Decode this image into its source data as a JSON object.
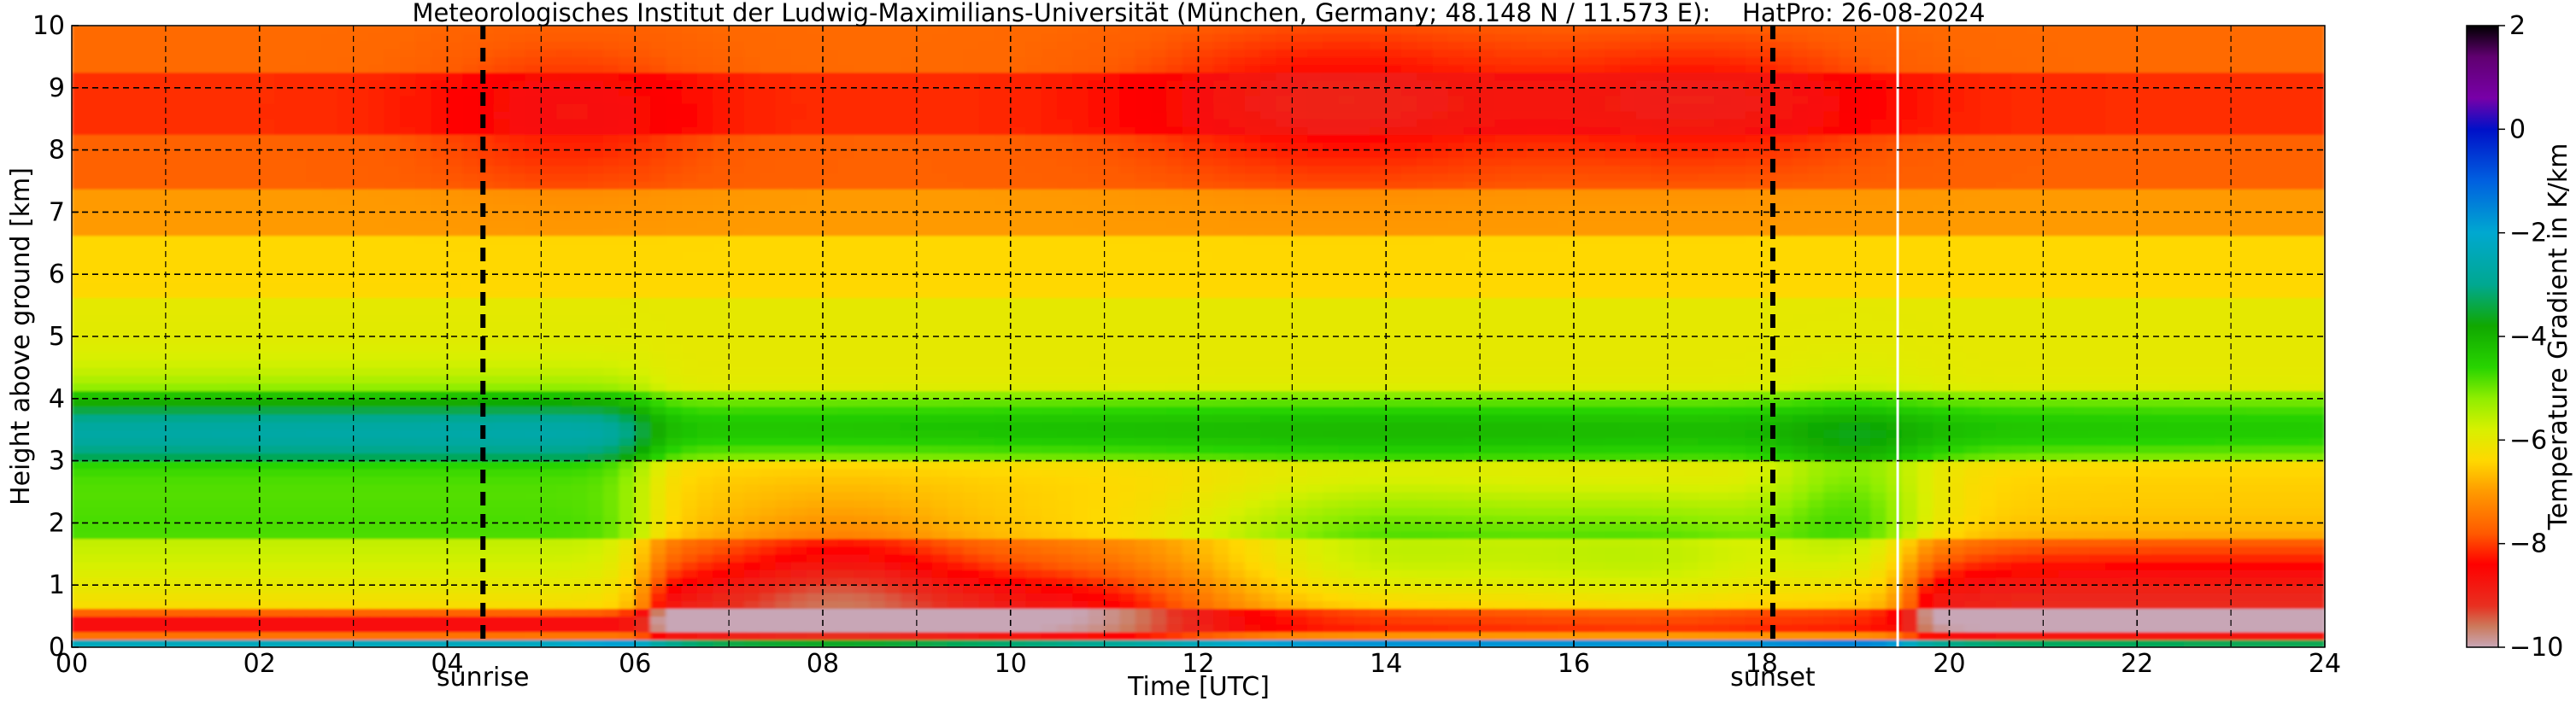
{
  "chart_data": {
    "type": "heatmap",
    "title": "Meteorologisches Institut der Ludwig-Maximilians-Universität (München, Germany; 48.148 N / 11.573 E):    HatPro: 26-08-2024",
    "xlabel": "Time [UTC]",
    "ylabel": "Height above ground [km]",
    "xlim": [
      0,
      24
    ],
    "ylim": [
      0,
      10
    ],
    "x_ticks": [
      0,
      2,
      4,
      6,
      8,
      10,
      12,
      14,
      16,
      18,
      20,
      22,
      24
    ],
    "x_tick_labels": [
      "00",
      "02",
      "04",
      "06",
      "08",
      "10",
      "12",
      "14",
      "16",
      "18",
      "20",
      "22",
      "24"
    ],
    "y_ticks": [
      0,
      1,
      2,
      3,
      4,
      5,
      6,
      7,
      8,
      9,
      10
    ],
    "y_tick_labels": [
      "0",
      "1",
      "2",
      "3",
      "4",
      "5",
      "6",
      "7",
      "8",
      "9",
      "10"
    ],
    "grid": true,
    "annotations": [
      {
        "text": "sunrise",
        "x": 4.38
      },
      {
        "text": "sunset",
        "x": 18.12
      }
    ],
    "data_gap_x": 19.45,
    "colorbar": {
      "label": "Temperature Gradient in K/km",
      "min": -10,
      "max": 2,
      "ticks": [
        2,
        0,
        -2,
        -4,
        -6,
        -8,
        -10
      ],
      "tick_labels": [
        "2",
        "0",
        "−2",
        "−4",
        "−6",
        "−8",
        "−10"
      ],
      "stops": [
        {
          "v": -10,
          "color": "#c8a6b6"
        },
        {
          "v": -9.6,
          "color": "#cc7a5c"
        },
        {
          "v": -9.2,
          "color": "#e83020"
        },
        {
          "v": -8.4,
          "color": "#ff0000"
        },
        {
          "v": -7.8,
          "color": "#ff5a00"
        },
        {
          "v": -7.0,
          "color": "#ff9a00"
        },
        {
          "v": -6.4,
          "color": "#ffd800"
        },
        {
          "v": -5.8,
          "color": "#d8f000"
        },
        {
          "v": -5.2,
          "color": "#90ee00"
        },
        {
          "v": -4.6,
          "color": "#28d400"
        },
        {
          "v": -3.8,
          "color": "#10a800"
        },
        {
          "v": -3.0,
          "color": "#00a890"
        },
        {
          "v": -2.0,
          "color": "#00a8d0"
        },
        {
          "v": -1.0,
          "color": "#0060e0"
        },
        {
          "v": 0.0,
          "color": "#0010c8"
        },
        {
          "v": 0.6,
          "color": "#7800a8"
        },
        {
          "v": 1.4,
          "color": "#600070"
        },
        {
          "v": 2.0,
          "color": "#000000"
        }
      ]
    }
  }
}
